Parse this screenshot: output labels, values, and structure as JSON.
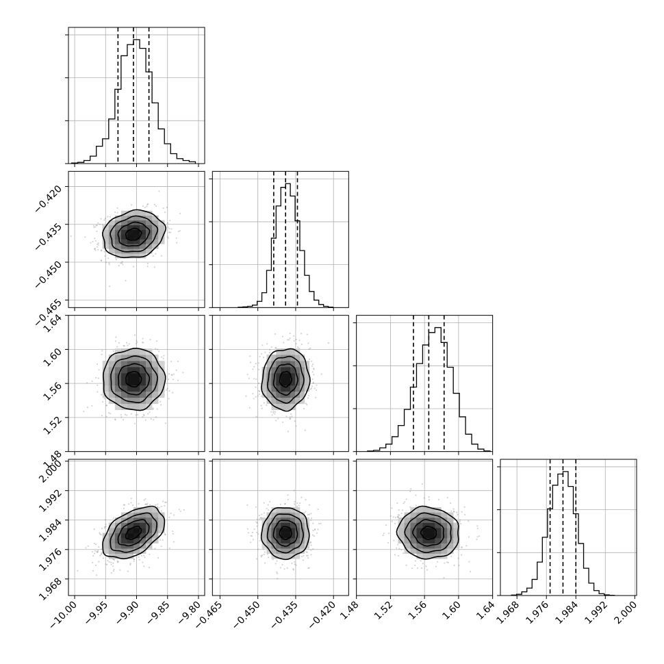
{
  "chart_data": {
    "type": "corner",
    "grid": true,
    "parameters": [
      {
        "range": [
          -10.01,
          -9.79
        ],
        "mean": -9.905,
        "sigma": 0.025,
        "quantiles": [
          -9.93,
          -9.905,
          -9.88
        ],
        "ticks": [
          -10.0,
          -9.95,
          -9.9,
          -9.85,
          -9.8
        ],
        "tick_labels": [
          "−10.00",
          "−9.95",
          "−9.90",
          "−9.85",
          "−9.80"
        ],
        "hist_counts": [
          0.005,
          0.01,
          0.025,
          0.06,
          0.14,
          0.2,
          0.36,
          0.6,
          0.87,
          0.96,
          1.0,
          0.93,
          0.74,
          0.49,
          0.28,
          0.16,
          0.08,
          0.04,
          0.025,
          0.015
        ]
      },
      {
        "range": [
          -0.468,
          -0.414
        ],
        "mean": -0.439,
        "sigma": 0.0047,
        "quantiles": [
          -0.4437,
          -0.439,
          -0.4343
        ],
        "ticks": [
          -0.465,
          -0.45,
          -0.435,
          -0.42
        ],
        "tick_labels": [
          "−0.465",
          "−0.450",
          "−0.435",
          "−0.420"
        ],
        "hist_counts": [
          0.003,
          0.006,
          0.01,
          0.02,
          0.05,
          0.12,
          0.3,
          0.56,
          0.82,
          0.97,
          1.0,
          0.9,
          0.7,
          0.46,
          0.26,
          0.13,
          0.06,
          0.025,
          0.01,
          0.004
        ]
      },
      {
        "range": [
          1.48,
          1.64
        ],
        "mean": 1.565,
        "sigma": 0.018,
        "quantiles": [
          1.547,
          1.565,
          1.583
        ],
        "ticks": [
          1.48,
          1.52,
          1.56,
          1.6,
          1.64
        ],
        "tick_labels": [
          "1.48",
          "1.52",
          "1.56",
          "1.60",
          "1.64"
        ],
        "hist_counts": [
          0.004,
          0.01,
          0.03,
          0.06,
          0.12,
          0.21,
          0.34,
          0.52,
          0.71,
          0.86,
          0.96,
          1.0,
          0.88,
          0.68,
          0.47,
          0.28,
          0.14,
          0.06,
          0.02,
          0.005
        ]
      },
      {
        "range": [
          1.9635,
          2.0005
        ],
        "mean": 1.9805,
        "sigma": 0.0035,
        "quantiles": [
          1.977,
          1.9805,
          1.984
        ],
        "ticks": [
          1.968,
          1.976,
          1.984,
          1.992,
          2.0
        ],
        "tick_labels": [
          "1.968",
          "1.976",
          "1.984",
          "1.992",
          "2.000"
        ],
        "hist_counts": [
          0.004,
          0.01,
          0.03,
          0.06,
          0.13,
          0.27,
          0.47,
          0.7,
          0.89,
          0.98,
          1.0,
          0.88,
          0.66,
          0.42,
          0.22,
          0.1,
          0.04,
          0.015,
          0.005,
          0.002
        ]
      }
    ],
    "correlations": [
      {
        "row": 1,
        "col": 0,
        "rho": 0.15
      },
      {
        "row": 2,
        "col": 0,
        "rho": 0.0
      },
      {
        "row": 2,
        "col": 1,
        "rho": 0.05
      },
      {
        "row": 3,
        "col": 0,
        "rho": 0.45
      },
      {
        "row": 3,
        "col": 1,
        "rho": 0.0
      },
      {
        "row": 3,
        "col": 2,
        "rho": -0.05
      }
    ],
    "contour_levels_sigma": [
      0.5,
      1.0,
      1.5,
      2.0
    ],
    "scatter_color": "#808080",
    "density_color": "#000000"
  }
}
